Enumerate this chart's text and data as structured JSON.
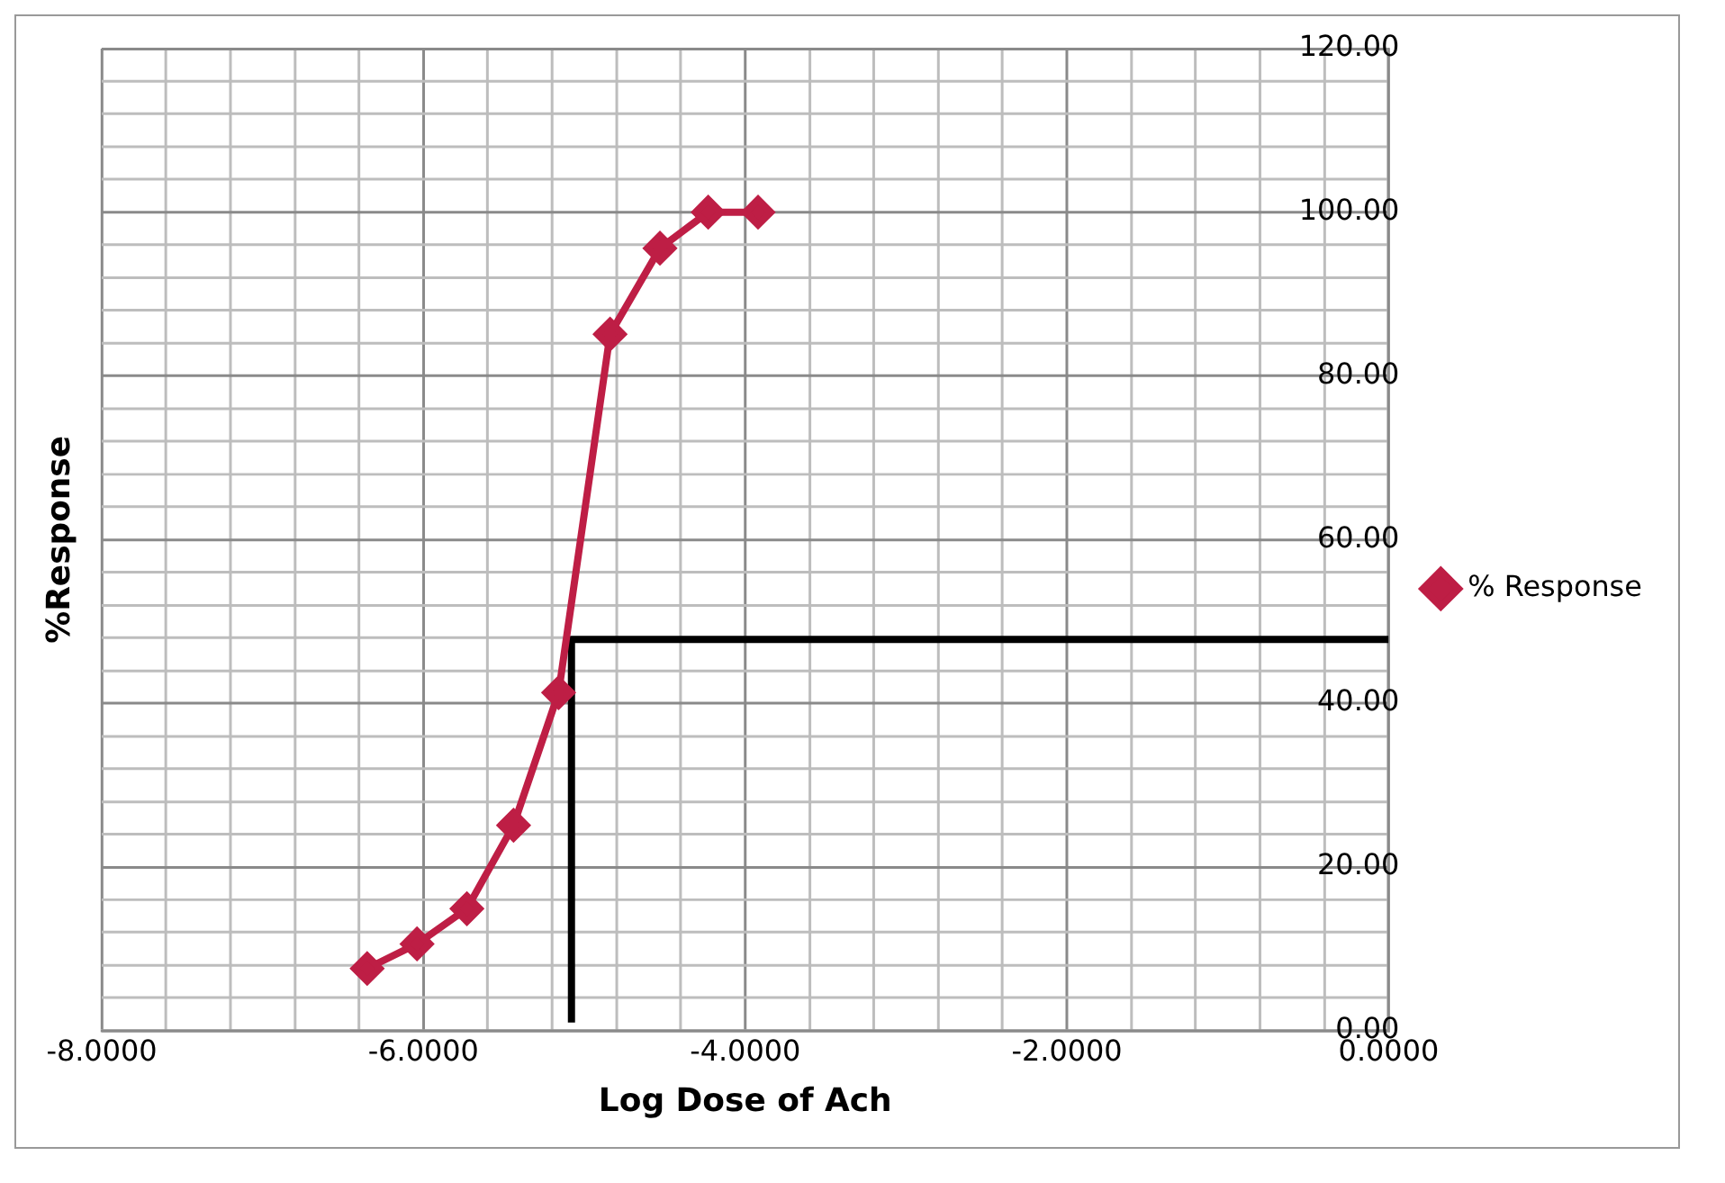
{
  "chart_data": {
    "type": "line",
    "xlabel": "Log Dose of Ach",
    "ylabel": "%Response",
    "series": [
      {
        "name": "% Response",
        "color": "#be1e45",
        "marker": "diamond",
        "x": [
          -6.35,
          -6.04,
          -5.73,
          -5.44,
          -5.16,
          -4.84,
          -4.53,
          -4.23,
          -3.92
        ],
        "values": [
          7.6,
          10.6,
          14.9,
          25.1,
          41.3,
          85.1,
          95.6,
          100,
          100
        ]
      },
      {
        "color": "#000000",
        "marker": "none",
        "x": [
          -5.08,
          -5.08,
          0
        ],
        "values": [
          1,
          47.8,
          47.8
        ]
      }
    ],
    "xlim": [
      -8,
      0
    ],
    "xticks": [
      {
        "value": -8,
        "label": "-8.0000"
      },
      {
        "value": -7.6,
        "label": null
      },
      {
        "value": -7.2,
        "label": null
      },
      {
        "value": -6.8,
        "label": null
      },
      {
        "value": -6.4,
        "label": null
      },
      {
        "value": -6,
        "label": "-6.0000"
      },
      {
        "value": -5.6,
        "label": null
      },
      {
        "value": -5.2,
        "label": null
      },
      {
        "value": -4.8,
        "label": null
      },
      {
        "value": -4.4,
        "label": null
      },
      {
        "value": -4,
        "label": "-4.0000"
      },
      {
        "value": -3.6,
        "label": null
      },
      {
        "value": -3.2,
        "label": null
      },
      {
        "value": -2.8,
        "label": null
      },
      {
        "value": -2.4,
        "label": null
      },
      {
        "value": -2,
        "label": "-2.0000"
      },
      {
        "value": -1.6,
        "label": null
      },
      {
        "value": -1.2,
        "label": null
      },
      {
        "value": -0.8,
        "label": null
      },
      {
        "value": -0.4,
        "label": null
      },
      {
        "value": 0,
        "label": "0.0000"
      }
    ],
    "ylim": [
      0,
      120
    ],
    "yticks": [
      {
        "value": 0,
        "label": "0.00"
      },
      {
        "value": 4,
        "label": null
      },
      {
        "value": 8,
        "label": null
      },
      {
        "value": 12,
        "label": null
      },
      {
        "value": 16,
        "label": null
      },
      {
        "value": 20,
        "label": "20.00"
      },
      {
        "value": 24,
        "label": null
      },
      {
        "value": 28,
        "label": null
      },
      {
        "value": 32,
        "label": null
      },
      {
        "value": 36,
        "label": null
      },
      {
        "value": 40,
        "label": "40.00"
      },
      {
        "value": 44,
        "label": null
      },
      {
        "value": 48,
        "label": null
      },
      {
        "value": 52,
        "label": null
      },
      {
        "value": 56,
        "label": null
      },
      {
        "value": 60,
        "label": "60.00"
      },
      {
        "value": 64,
        "label": null
      },
      {
        "value": 68,
        "label": null
      },
      {
        "value": 72,
        "label": null
      },
      {
        "value": 76,
        "label": null
      },
      {
        "value": 80,
        "label": "80.00"
      },
      {
        "value": 84,
        "label": null
      },
      {
        "value": 88,
        "label": null
      },
      {
        "value": 92,
        "label": null
      },
      {
        "value": 96,
        "label": null
      },
      {
        "value": 100,
        "label": "100.00"
      },
      {
        "value": 104,
        "label": null
      },
      {
        "value": 108,
        "label": null
      },
      {
        "value": 112,
        "label": null
      },
      {
        "value": 116,
        "label": null
      },
      {
        "value": 120,
        "label": "120.00"
      }
    ],
    "grid": true,
    "legend": "right",
    "line_style": "solid"
  }
}
